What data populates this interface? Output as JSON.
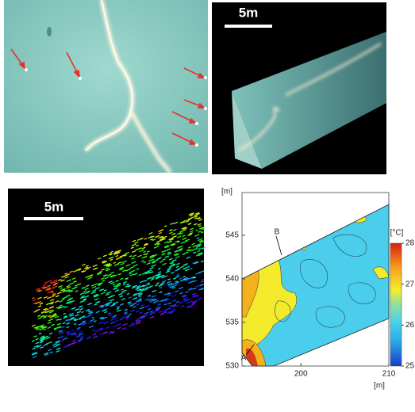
{
  "scale_bars": [
    "5m",
    "5m"
  ],
  "map": {
    "y_unit": "[m]",
    "x_unit": "[m]",
    "yticks": [
      530,
      535,
      540,
      545
    ],
    "ylim": [
      530,
      549.9
    ],
    "xticks": [
      200,
      210
    ],
    "xlim": [
      193.3,
      210
    ],
    "point_labels": [
      "A",
      "B"
    ],
    "colorbar": {
      "title": "[°C]",
      "ticks": [
        25,
        26,
        27,
        28
      ],
      "lim": [
        25,
        28
      ]
    }
  }
}
